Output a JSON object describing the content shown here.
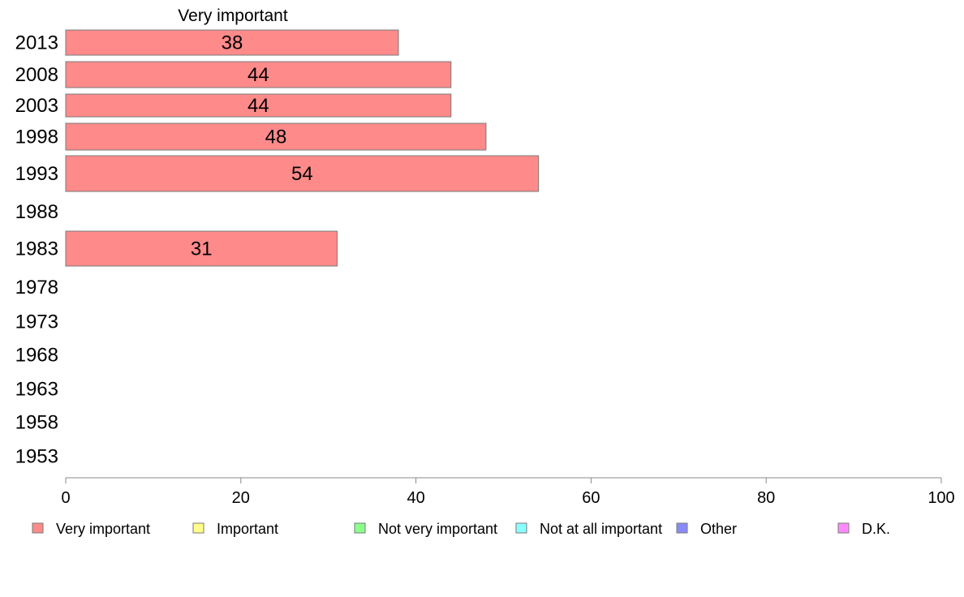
{
  "chart_data": {
    "type": "bar",
    "orientation": "horizontal",
    "title": "Very important",
    "categories": [
      "2013",
      "2008",
      "2003",
      "1998",
      "1993",
      "1988",
      "1983",
      "1978",
      "1973",
      "1968",
      "1963",
      "1958",
      "1953"
    ],
    "values": [
      38,
      44,
      44,
      48,
      54,
      null,
      31,
      null,
      null,
      null,
      null,
      null,
      null
    ],
    "xlim": [
      0,
      100
    ],
    "xticks": [
      "0",
      "20",
      "40",
      "60",
      "80",
      "100"
    ],
    "series_color": "#ff8a8a",
    "grid": false,
    "legend_position": "bottom",
    "legend": [
      {
        "label": "Very important",
        "color": "#ff8a8a"
      },
      {
        "label": "Important",
        "color": "#ffff8a"
      },
      {
        "label": "Not very important",
        "color": "#8aff8a"
      },
      {
        "label": "Not at all important",
        "color": "#8affff"
      },
      {
        "label": "Other",
        "color": "#8a8aff"
      },
      {
        "label": "D.K.",
        "color": "#ff8aff"
      }
    ]
  }
}
